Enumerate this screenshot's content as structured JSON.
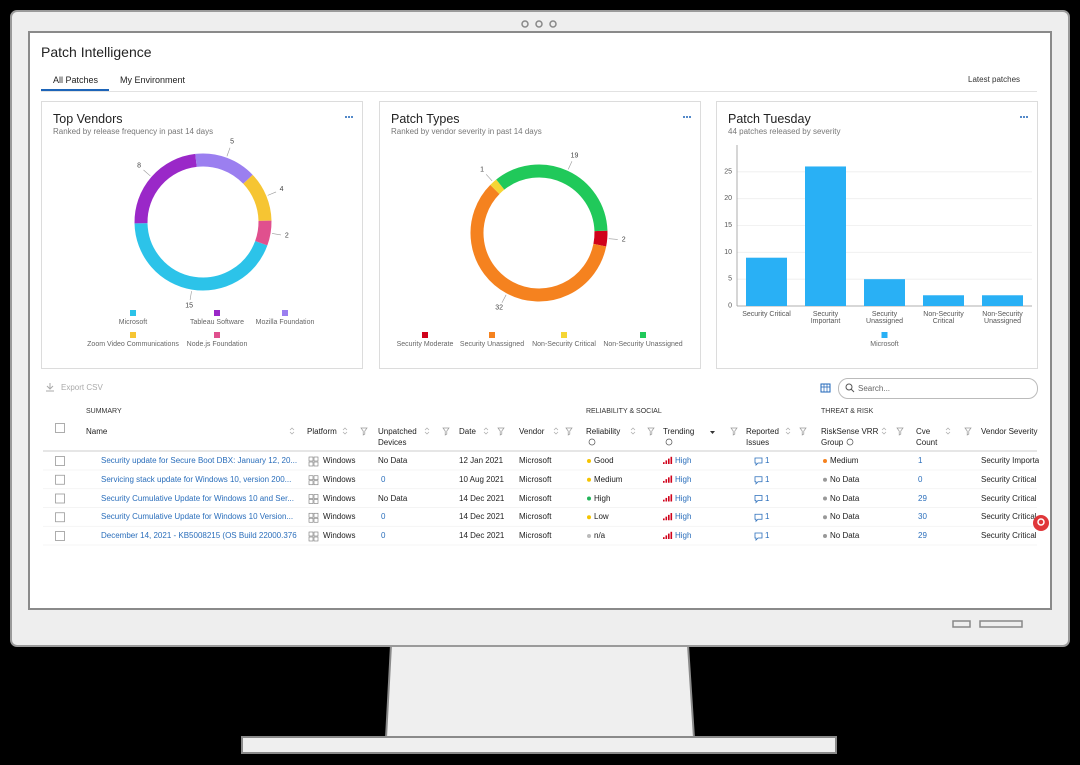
{
  "header": {
    "title": "Patch Intelligence",
    "tabs": [
      "All Patches",
      "My Environment"
    ],
    "sort": "Latest patches"
  },
  "chart_data": [
    {
      "type": "donut",
      "title": "Top Vendors",
      "subtitle": "Ranked by release frequency in past 14 days",
      "categories": [
        "Microsoft",
        "Tableau Software",
        "Mozilla Foundation",
        "Zoom Video Communications",
        "Node.js Foundation"
      ],
      "values": [
        15,
        8,
        5,
        4,
        2
      ],
      "colors": [
        "#2cc3e9",
        "#9a28c8",
        "#9b7ff0",
        "#f6c533",
        "#e0508e"
      ]
    },
    {
      "type": "donut",
      "title": "Patch Types",
      "subtitle": "Ranked by vendor severity in past 14 days",
      "categories": [
        "Security Moderate",
        "Security Unassigned",
        "Non-Security Critical",
        "Non-Security Unassigned"
      ],
      "values": [
        2,
        32,
        1,
        19
      ],
      "colors": [
        "#d0021b",
        "#f5821f",
        "#f5d534",
        "#20c95a"
      ]
    },
    {
      "type": "bar",
      "title": "Patch Tuesday",
      "subtitle": "44 patches released by severity",
      "categories": [
        "Security Critical",
        "Security Important",
        "Security Unassigned",
        "Non-Security Critical",
        "Non-Security Unassigned"
      ],
      "series": [
        {
          "name": "Microsoft",
          "color": "#29b0f5",
          "values": [
            9,
            26,
            5,
            2,
            2
          ]
        }
      ],
      "ylim": [
        0,
        30
      ],
      "yticks": [
        0,
        5,
        10,
        15,
        20,
        25
      ],
      "grid": true
    }
  ],
  "toolbar": {
    "export": "Export CSV",
    "search_placeholder": "Search..."
  },
  "table": {
    "groups": [
      "SUMMARY",
      "RELIABILITY & SOCIAL",
      "THREAT & RISK"
    ],
    "columns": [
      "Name",
      "Platform",
      "Unpatched Devices",
      "Date",
      "Vendor",
      "Reliability",
      "Trending",
      "Reported Issues",
      "RiskSense VRR Group",
      "Cve Count",
      "Vendor Severity"
    ],
    "rows": [
      [
        "Security update for Secure Boot DBX: January 12, 20...",
        "Windows",
        "No Data",
        "12 Jan 2021",
        "Microsoft",
        "Good",
        "High",
        1,
        "Medium",
        1,
        "Security Important"
      ],
      [
        "Servicing stack update for Windows 10, version 200...",
        "Windows",
        0,
        "10 Aug 2021",
        "Microsoft",
        "Medium",
        "High",
        1,
        "No Data",
        0,
        "Security Critical"
      ],
      [
        "Security Cumulative Update for Windows 10 and Ser...",
        "Windows",
        "No Data",
        "14 Dec 2021",
        "Microsoft",
        "High",
        "High",
        1,
        "No Data",
        29,
        "Security Critical"
      ],
      [
        "Security Cumulative Update for Windows 10 Version...",
        "Windows",
        0,
        "14 Dec 2021",
        "Microsoft",
        "Low",
        "High",
        1,
        "No Data",
        30,
        "Security Critical"
      ],
      [
        "December 14, 2021 - KB5008215 (OS Build 22000.376)",
        "Windows",
        0,
        "14 Dec 2021",
        "Microsoft",
        "n/a",
        "High",
        1,
        "No Data",
        29,
        "Security Critical"
      ]
    ],
    "reliability_colors": [
      "#f5c400",
      "#f5c400",
      "#22b45a",
      "#f5c400",
      "#bbbbbb"
    ],
    "vrr_colors": [
      "#f5821f",
      "#999999",
      "#999999",
      "#999999",
      "#999999"
    ]
  }
}
